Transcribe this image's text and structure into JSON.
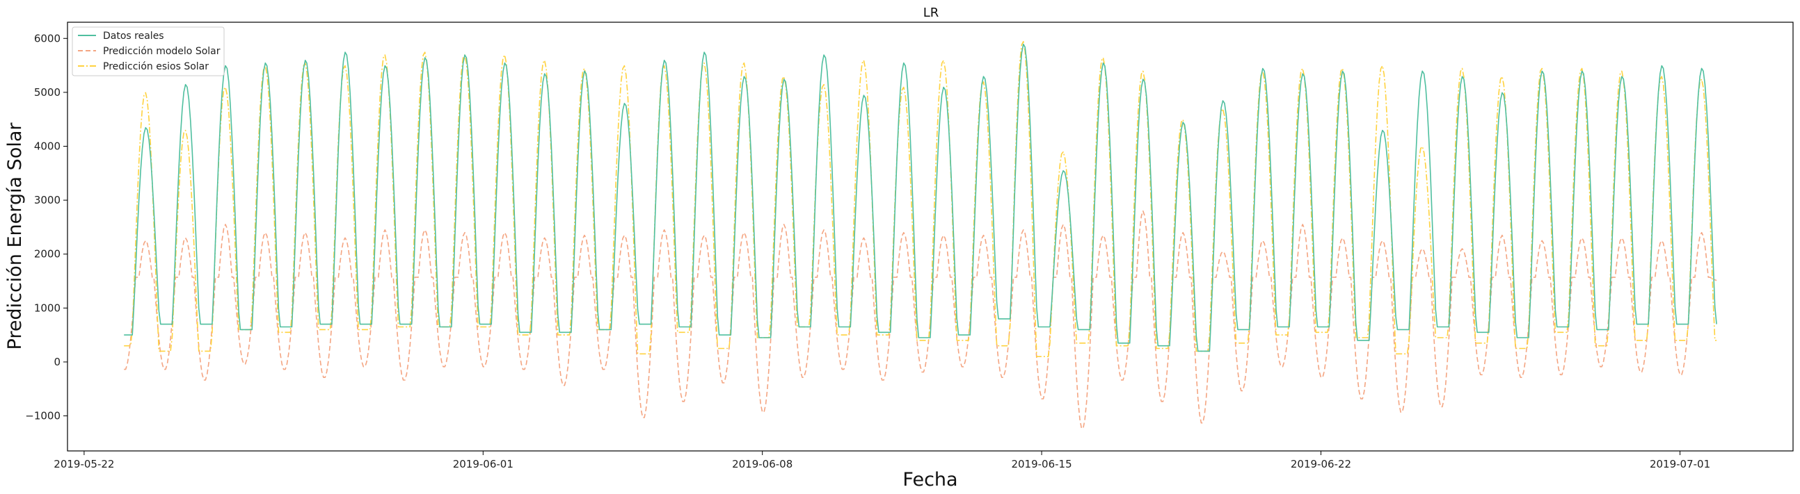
{
  "chart_data": {
    "type": "line",
    "title": "LR",
    "xlabel": "Fecha",
    "ylabel": "Predicción Energía Solar",
    "x_start": "2019-05-23 00:00",
    "xlim": [
      "2019-05-21 14:00",
      "2019-07-03 20:00"
    ],
    "ylim": [
      -1650,
      6300
    ],
    "yticks": [
      -1000,
      0,
      1000,
      2000,
      3000,
      4000,
      5000,
      6000
    ],
    "xticks": [
      "2019-05-22",
      "2019-06-01",
      "2019-06-08",
      "2019-06-15",
      "2019-06-22",
      "2019-07-01"
    ],
    "grid": false,
    "legend_position": "top-left",
    "series": [
      {
        "name": "Datos reales",
        "color": "#4fbf9f",
        "style": "solid",
        "daily_peak": [
          4350,
          5150,
          5500,
          5550,
          5600,
          5750,
          5500,
          5650,
          5700,
          5550,
          5350,
          5400,
          4800,
          5600,
          5750,
          5300,
          5250,
          5700,
          4950,
          5550,
          5100,
          5300,
          5900,
          3550,
          5550,
          5250,
          4450,
          4850,
          5450,
          5350,
          5400,
          4300,
          5400,
          5300,
          5000,
          5400,
          5400,
          5300,
          5500,
          5450
        ],
        "night_level": [
          500,
          700,
          700,
          600,
          650,
          700,
          700,
          700,
          650,
          700,
          550,
          550,
          600,
          700,
          650,
          500,
          450,
          650,
          650,
          550,
          450,
          500,
          800,
          650,
          600,
          350,
          300,
          200,
          600,
          650,
          650,
          400,
          600,
          650,
          550,
          450,
          650,
          600,
          700,
          700
        ]
      },
      {
        "name": "Predicción modelo Solar",
        "color": "#f4a582",
        "style": "dashed",
        "daily_peak": [
          2250,
          2300,
          2550,
          2400,
          2400,
          2300,
          2450,
          2450,
          2400,
          2400,
          2300,
          2350,
          2350,
          2450,
          2350,
          2400,
          2550,
          2450,
          2300,
          2400,
          2350,
          2350,
          2450,
          2550,
          2350,
          2800,
          2400,
          2050,
          2250,
          2550,
          2300,
          2250,
          2100,
          2100,
          2350,
          2250,
          2300,
          2300,
          2250,
          2400
        ],
        "night_min": [
          -150,
          -350,
          -50,
          -150,
          -300,
          -100,
          -350,
          -100,
          -100,
          -150,
          -450,
          -150,
          -1050,
          -750,
          -400,
          -950,
          -300,
          -150,
          -350,
          -200,
          -100,
          -300,
          -700,
          -1250,
          -350,
          -750,
          -1150,
          -550,
          -100,
          -300,
          -700,
          -950,
          -850,
          -250,
          -300,
          -250,
          -100,
          -200,
          -250,
          1500
        ],
        "plateau": 1570
      },
      {
        "name": "Predicción esios Solar",
        "color": "#ffd23f",
        "style": "dashdot",
        "daily_peak": [
          5000,
          4300,
          5100,
          5500,
          5550,
          5500,
          5700,
          5750,
          5700,
          5700,
          5600,
          5450,
          5500,
          5500,
          5550,
          5550,
          5300,
          5150,
          5600,
          5100,
          5600,
          5200,
          5950,
          3900,
          5650,
          5400,
          4500,
          4700,
          5400,
          5450,
          5450,
          5500,
          4000,
          5450,
          5300,
          5450,
          5450,
          5400,
          5300,
          5250
        ],
        "night_level": [
          300,
          200,
          200,
          600,
          550,
          600,
          600,
          650,
          650,
          650,
          500,
          500,
          600,
          150,
          550,
          250,
          450,
          650,
          500,
          500,
          400,
          400,
          300,
          100,
          350,
          300,
          250,
          200,
          350,
          500,
          550,
          450,
          150,
          450,
          350,
          250,
          550,
          300,
          400,
          400
        ]
      }
    ]
  }
}
